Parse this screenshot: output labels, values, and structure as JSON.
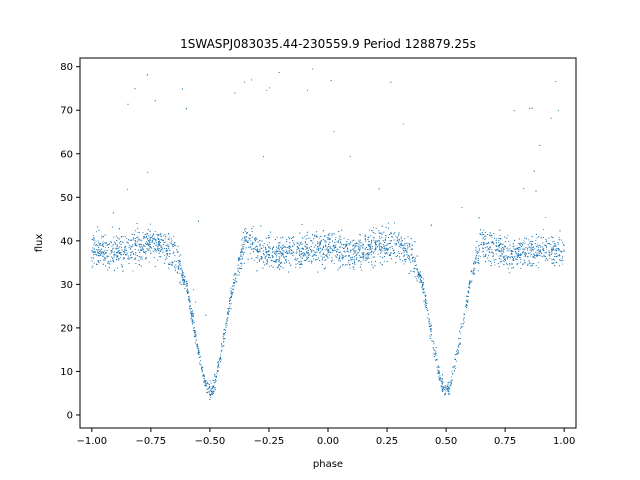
{
  "chart_data": {
    "type": "scatter",
    "title": "1SWASPJ083035.44-230559.9 Period 128879.25s",
    "xlabel": "phase",
    "ylabel": "flux",
    "xlim": [
      -1.05,
      1.05
    ],
    "ylim": [
      -3,
      82
    ],
    "xticks": [
      -1.0,
      -0.75,
      -0.5,
      -0.25,
      0.0,
      0.25,
      0.5,
      0.75,
      1.0
    ],
    "xtick_labels": [
      "−1.00",
      "−0.75",
      "−0.50",
      "−0.25",
      "0.00",
      "0.25",
      "0.50",
      "0.75",
      "1.00"
    ],
    "yticks": [
      0,
      10,
      20,
      30,
      40,
      50,
      60,
      70,
      80
    ],
    "ytick_labels": [
      "0",
      "10",
      "20",
      "30",
      "40",
      "50",
      "60",
      "70",
      "80"
    ],
    "grid": false,
    "point_color": "#1f77b4",
    "phase_range": [
      -1.0,
      1.0
    ],
    "baseline_flux": 38,
    "primary_eclipse_phase": -0.5,
    "secondary_eclipse_phase": 0.5,
    "eclipse_minimum_flux": 5,
    "series": [
      {
        "x": [
          -1.0,
          -0.9,
          -0.8,
          -0.7,
          -0.65,
          -0.6,
          -0.55,
          -0.52,
          -0.5,
          -0.48,
          -0.45,
          -0.4,
          -0.35,
          -0.3,
          -0.2,
          -0.1,
          0.0,
          0.1,
          0.2,
          0.3,
          0.35,
          0.4,
          0.45,
          0.48,
          0.5,
          0.52,
          0.55,
          0.6,
          0.65,
          0.7,
          0.8,
          0.9,
          1.0
        ],
        "y": [
          38,
          37,
          39,
          39,
          37,
          30,
          15,
          7,
          5,
          7,
          15,
          30,
          40,
          38,
          37,
          38,
          38,
          37,
          39,
          39,
          37,
          30,
          15,
          7,
          5,
          7,
          15,
          30,
          40,
          38,
          37,
          38,
          38
        ]
      }
    ]
  }
}
